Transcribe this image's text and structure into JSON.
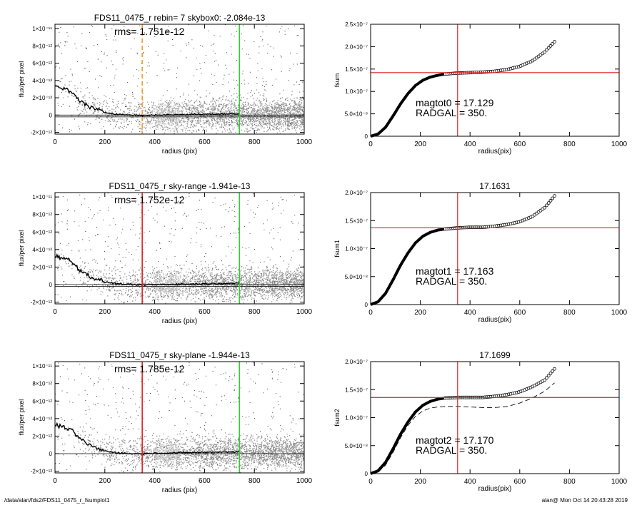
{
  "footer": {
    "path": "/data/alan/fds2/FDS11_0475_r_fsumplot1",
    "user_time": "alan@  Mon Oct 14 20:43:28 2019"
  },
  "chart_data": [
    {
      "type": "scatter",
      "title": "FDS11_0475_r rebin= 7    skybox0: -2.084e-13",
      "annotation": "rms= 1.751e-12",
      "xlabel": "radius (pix)",
      "ylabel": "flux/per pixel",
      "xlim": [
        0,
        1000
      ],
      "ylim": [
        -2.2e-12,
        1.05e-11
      ],
      "xticks": [
        0,
        200,
        400,
        600,
        800,
        1000
      ],
      "xtick_labels": [
        "0",
        "200",
        "400",
        "600",
        "800",
        "1000"
      ],
      "yticks": [
        -2e-12,
        0,
        2e-12,
        4e-12,
        6e-12,
        8e-12,
        1e-11
      ],
      "ytick_labels": [
        "-2×10⁻¹²",
        "0",
        "2×10⁻¹²",
        "4×10⁻¹²",
        "6×10⁻¹²",
        "8×10⁻¹²",
        "1×10⁻¹¹"
      ],
      "vlines": [
        {
          "x": 350,
          "color": "#f39a2b",
          "style": "dashed"
        },
        {
          "x": 740,
          "color": "#33cc33",
          "style": "solid"
        }
      ],
      "hlines": [
        0,
        -2.084e-13
      ],
      "profile": [
        [
          0,
          3.3e-12
        ],
        [
          25,
          3.1e-12
        ],
        [
          50,
          2.9e-12
        ],
        [
          75,
          2.4e-12
        ],
        [
          100,
          1.7e-12
        ],
        [
          125,
          1.2e-12
        ],
        [
          150,
          8e-13
        ],
        [
          200,
          3e-13
        ],
        [
          250,
          1e-13
        ],
        [
          300,
          0
        ],
        [
          350,
          -5e-14
        ],
        [
          400,
          0
        ],
        [
          500,
          5e-14
        ],
        [
          600,
          1e-13
        ],
        [
          700,
          1.5e-13
        ],
        [
          740,
          1.2e-13
        ]
      ],
      "scatter_colors": {
        "points": "#909090",
        "sparse": "#3a3a3a",
        "profile": "#000000"
      }
    },
    {
      "type": "scatter",
      "title": "FDS11_0475_r sky-range -1.941e-13",
      "annotation": "rms= 1.752e-12",
      "xlabel": "radius (pix)",
      "ylabel": "flux/per pixel",
      "xlim": [
        0,
        1000
      ],
      "ylim": [
        -2.2e-12,
        1.05e-11
      ],
      "xticks": [
        0,
        200,
        400,
        600,
        800,
        1000
      ],
      "xtick_labels": [
        "0",
        "200",
        "400",
        "600",
        "800",
        "1000"
      ],
      "yticks": [
        -2e-12,
        0,
        2e-12,
        4e-12,
        6e-12,
        8e-12,
        1e-11
      ],
      "ytick_labels": [
        "-2×10⁻¹²",
        "0",
        "2×10⁻¹²",
        "4×10⁻¹²",
        "6×10⁻¹²",
        "8×10⁻¹²",
        "1×10⁻¹¹"
      ],
      "vlines": [
        {
          "x": 350,
          "color": "#e02020",
          "style": "solid"
        },
        {
          "x": 740,
          "color": "#33cc33",
          "style": "solid"
        }
      ],
      "hlines": [
        0,
        -1.941e-13
      ],
      "profile": [
        [
          0,
          3.3e-12
        ],
        [
          25,
          3.1e-12
        ],
        [
          50,
          2.9e-12
        ],
        [
          75,
          2.4e-12
        ],
        [
          100,
          1.7e-12
        ],
        [
          125,
          1.2e-12
        ],
        [
          150,
          8e-13
        ],
        [
          200,
          3e-13
        ],
        [
          250,
          1e-13
        ],
        [
          300,
          0
        ],
        [
          350,
          -5e-14
        ],
        [
          400,
          0
        ],
        [
          500,
          5e-14
        ],
        [
          600,
          1e-13
        ],
        [
          700,
          1.5e-13
        ],
        [
          740,
          1.2e-13
        ]
      ],
      "scatter_colors": {
        "points": "#909090",
        "sparse": "#3a3a3a",
        "profile": "#000000"
      }
    },
    {
      "type": "scatter",
      "title": "FDS11_0475_r sky-plane -1.944e-13",
      "annotation": "rms= 1.785e-12",
      "xlabel": "radius (pix)",
      "ylabel": "flux/per pixel",
      "xlim": [
        0,
        1000
      ],
      "ylim": [
        -2.2e-12,
        1.05e-11
      ],
      "xticks": [
        0,
        200,
        400,
        600,
        800,
        1000
      ],
      "xtick_labels": [
        "0",
        "200",
        "400",
        "600",
        "800",
        "1000"
      ],
      "yticks": [
        -2e-12,
        0,
        2e-12,
        4e-12,
        6e-12,
        8e-12,
        1e-11
      ],
      "ytick_labels": [
        "-2×10⁻¹²",
        "0",
        "2×10⁻¹²",
        "4×10⁻¹²",
        "6×10⁻¹²",
        "8×10⁻¹²",
        "1×10⁻¹¹"
      ],
      "vlines": [
        {
          "x": 350,
          "color": "#e02020",
          "style": "solid"
        },
        {
          "x": 740,
          "color": "#33cc33",
          "style": "solid"
        }
      ],
      "hlines": [
        0
      ],
      "profile": [
        [
          0,
          3.3e-12
        ],
        [
          25,
          3.1e-12
        ],
        [
          50,
          2.9e-12
        ],
        [
          75,
          2.4e-12
        ],
        [
          100,
          1.7e-12
        ],
        [
          125,
          1.2e-12
        ],
        [
          150,
          8e-13
        ],
        [
          200,
          3e-13
        ],
        [
          250,
          1e-13
        ],
        [
          300,
          0
        ],
        [
          350,
          0
        ],
        [
          400,
          5e-14
        ],
        [
          500,
          1e-13
        ],
        [
          600,
          1.5e-13
        ],
        [
          700,
          2e-13
        ],
        [
          740,
          1.8e-13
        ]
      ],
      "scatter_colors": {
        "points": "#909090",
        "sparse": "#3a3a3a",
        "profile": "#000000"
      }
    },
    {
      "type": "line",
      "title": "",
      "xlabel": "radius(pix)",
      "ylabel": "fsum",
      "xlim": [
        0,
        1000
      ],
      "ylim": [
        0,
        2.5e-07
      ],
      "xticks": [
        0,
        200,
        400,
        600,
        800,
        1000
      ],
      "xtick_labels": [
        "0",
        "200",
        "400",
        "600",
        "800",
        "1000"
      ],
      "yticks": [
        0,
        5e-08,
        1e-07,
        1.5e-07,
        2e-07,
        2.5e-07
      ],
      "ytick_labels": [
        "0",
        "5.0×10⁻⁸",
        "1.0×10⁻⁷",
        "1.5×10⁻⁷",
        "2.0×10⁻⁷",
        "2.5×10⁻⁷"
      ],
      "annotations": [
        "magtot0 = 17.129",
        "RADGAL =    350."
      ],
      "vline": {
        "x": 350,
        "color": "#e02020"
      },
      "hline": {
        "y": 1.42e-07,
        "color": "#e02020"
      },
      "series": [
        {
          "marker": "circle",
          "points": [
            [
              0,
              0
            ],
            [
              30,
              5e-09
            ],
            [
              60,
              2e-08
            ],
            [
              90,
              4.5e-08
            ],
            [
              120,
              7.2e-08
            ],
            [
              150,
              9.5e-08
            ],
            [
              180,
              1.13e-07
            ],
            [
              210,
              1.25e-07
            ],
            [
              240,
              1.32e-07
            ],
            [
              270,
              1.36e-07
            ],
            [
              300,
              1.39e-07
            ],
            [
              350,
              1.41e-07
            ],
            [
              400,
              1.42e-07
            ],
            [
              450,
              1.43e-07
            ],
            [
              500,
              1.45e-07
            ],
            [
              550,
              1.49e-07
            ],
            [
              600,
              1.56e-07
            ],
            [
              650,
              1.68e-07
            ],
            [
              700,
              1.88e-07
            ],
            [
              740,
              2.11e-07
            ]
          ]
        }
      ]
    },
    {
      "type": "line",
      "title": "17.1631",
      "xlabel": "radius(pix)",
      "ylabel": "fsum1",
      "xlim": [
        0,
        1000
      ],
      "ylim": [
        0,
        2e-07
      ],
      "xticks": [
        0,
        200,
        400,
        600,
        800,
        1000
      ],
      "xtick_labels": [
        "0",
        "200",
        "400",
        "600",
        "800",
        "1000"
      ],
      "yticks": [
        0,
        5e-08,
        1e-07,
        1.5e-07,
        2e-07
      ],
      "ytick_labels": [
        "0",
        "5.0×10⁻⁸",
        "1.0×10⁻⁷",
        "1.5×10⁻⁷",
        "2.0×10⁻⁷"
      ],
      "annotations": [
        "magtot1 = 17.163",
        "RADGAL =    350."
      ],
      "vline": {
        "x": 350,
        "color": "#e02020"
      },
      "hline": {
        "y": 1.37e-07,
        "color": "#e02020"
      },
      "series": [
        {
          "marker": "circle",
          "points": [
            [
              0,
              0
            ],
            [
              30,
              5e-09
            ],
            [
              60,
              2e-08
            ],
            [
              90,
              4.4e-08
            ],
            [
              120,
              7e-08
            ],
            [
              150,
              9.2e-08
            ],
            [
              180,
              1.1e-07
            ],
            [
              210,
              1.22e-07
            ],
            [
              240,
              1.29e-07
            ],
            [
              270,
              1.33e-07
            ],
            [
              300,
              1.35e-07
            ],
            [
              350,
              1.37e-07
            ],
            [
              400,
              1.38e-07
            ],
            [
              450,
              1.38e-07
            ],
            [
              500,
              1.4e-07
            ],
            [
              550,
              1.43e-07
            ],
            [
              600,
              1.48e-07
            ],
            [
              650,
              1.57e-07
            ],
            [
              700,
              1.73e-07
            ],
            [
              740,
              1.94e-07
            ]
          ]
        }
      ]
    },
    {
      "type": "line",
      "title": "17.1699",
      "xlabel": "radius(pix)",
      "ylabel": "fsum2",
      "xlim": [
        0,
        1000
      ],
      "ylim": [
        0,
        2e-07
      ],
      "xticks": [
        0,
        200,
        400,
        600,
        800,
        1000
      ],
      "xtick_labels": [
        "0",
        "200",
        "400",
        "600",
        "800",
        "1000"
      ],
      "yticks": [
        0,
        5e-08,
        1e-07,
        1.5e-07,
        2e-07
      ],
      "ytick_labels": [
        "0",
        "5.0×10⁻⁸",
        "1.0×10⁻⁷",
        "1.5×10⁻⁷",
        "2.0×10⁻⁷"
      ],
      "annotations": [
        "magtot2 = 17.170",
        "RADGAL =    350."
      ],
      "vline": {
        "x": 350,
        "color": "#e02020"
      },
      "hline": {
        "y": 1.36e-07,
        "color": "#e02020"
      },
      "series": [
        {
          "marker": "circle",
          "points": [
            [
              0,
              0
            ],
            [
              30,
              5e-09
            ],
            [
              60,
              2e-08
            ],
            [
              90,
              4.4e-08
            ],
            [
              120,
              7e-08
            ],
            [
              150,
              9.2e-08
            ],
            [
              180,
              1.1e-07
            ],
            [
              210,
              1.22e-07
            ],
            [
              240,
              1.29e-07
            ],
            [
              270,
              1.33e-07
            ],
            [
              300,
              1.35e-07
            ],
            [
              350,
              1.36e-07
            ],
            [
              400,
              1.36e-07
            ],
            [
              450,
              1.36e-07
            ],
            [
              500,
              1.38e-07
            ],
            [
              550,
              1.41e-07
            ],
            [
              600,
              1.46e-07
            ],
            [
              650,
              1.55e-07
            ],
            [
              700,
              1.67e-07
            ],
            [
              740,
              1.87e-07
            ]
          ]
        },
        {
          "marker": "none",
          "style": "dashed",
          "points": [
            [
              0,
              0
            ],
            [
              30,
              3e-09
            ],
            [
              60,
              1.5e-08
            ],
            [
              90,
              3.8e-08
            ],
            [
              120,
              6.4e-08
            ],
            [
              150,
              8.6e-08
            ],
            [
              180,
              1.02e-07
            ],
            [
              210,
              1.12e-07
            ],
            [
              240,
              1.17e-07
            ],
            [
              270,
              1.19e-07
            ],
            [
              300,
              1.2e-07
            ],
            [
              350,
              1.2e-07
            ],
            [
              400,
              1.19e-07
            ],
            [
              450,
              1.18e-07
            ],
            [
              500,
              1.18e-07
            ],
            [
              550,
              1.2e-07
            ],
            [
              600,
              1.26e-07
            ],
            [
              650,
              1.35e-07
            ],
            [
              700,
              1.47e-07
            ],
            [
              740,
              1.62e-07
            ]
          ]
        }
      ]
    }
  ]
}
